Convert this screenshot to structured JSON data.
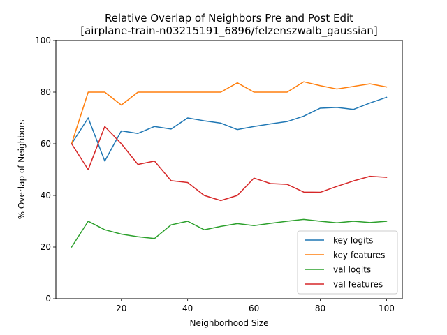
{
  "chart_data": {
    "type": "line",
    "title": "Relative Overlap of Neighbors Pre and Post Edit",
    "subtitle": "[airplane-train-n03215191_6896/felzenszwalb_gaussian]",
    "xlabel": "Neighborhood Size",
    "ylabel": "% Overlap of Neighbors",
    "xlim": [
      0.25,
      104.75
    ],
    "ylim": [
      0,
      100
    ],
    "xticks": [
      20,
      40,
      60,
      80,
      100
    ],
    "yticks": [
      0,
      20,
      40,
      60,
      80,
      100
    ],
    "grid": false,
    "legend_position": "lower-right",
    "x": [
      5,
      10,
      15,
      20,
      25,
      30,
      35,
      40,
      45,
      50,
      55,
      60,
      65,
      70,
      75,
      80,
      85,
      90,
      95,
      100
    ],
    "series": [
      {
        "name": "key logits",
        "color": "#1f77b4",
        "values": [
          60,
          70,
          53.3,
          65,
          64,
          66.7,
          65.7,
          70,
          68.9,
          68,
          65.5,
          66.7,
          67.7,
          68.6,
          70.7,
          73.8,
          74.1,
          73.3,
          75.8,
          78
        ]
      },
      {
        "name": "key features",
        "color": "#ff7f0e",
        "values": [
          60,
          80,
          80,
          75,
          80,
          80,
          80,
          80,
          80,
          80,
          83.6,
          80,
          80,
          80,
          84,
          82.5,
          81.2,
          82.2,
          83.2,
          82
        ]
      },
      {
        "name": "val logits",
        "color": "#2ca02c",
        "values": [
          20,
          30,
          26.7,
          25,
          24,
          23.3,
          28.6,
          30,
          26.7,
          28,
          29.1,
          28.3,
          29.2,
          30,
          30.7,
          30,
          29.4,
          30,
          29.5,
          30
        ]
      },
      {
        "name": "val features",
        "color": "#d62728",
        "values": [
          60,
          50,
          66.7,
          60,
          52,
          53.3,
          45.7,
          45,
          40,
          38,
          40,
          46.7,
          44.6,
          44.3,
          41.3,
          41.2,
          43.5,
          45.6,
          47.4,
          47
        ]
      }
    ]
  }
}
